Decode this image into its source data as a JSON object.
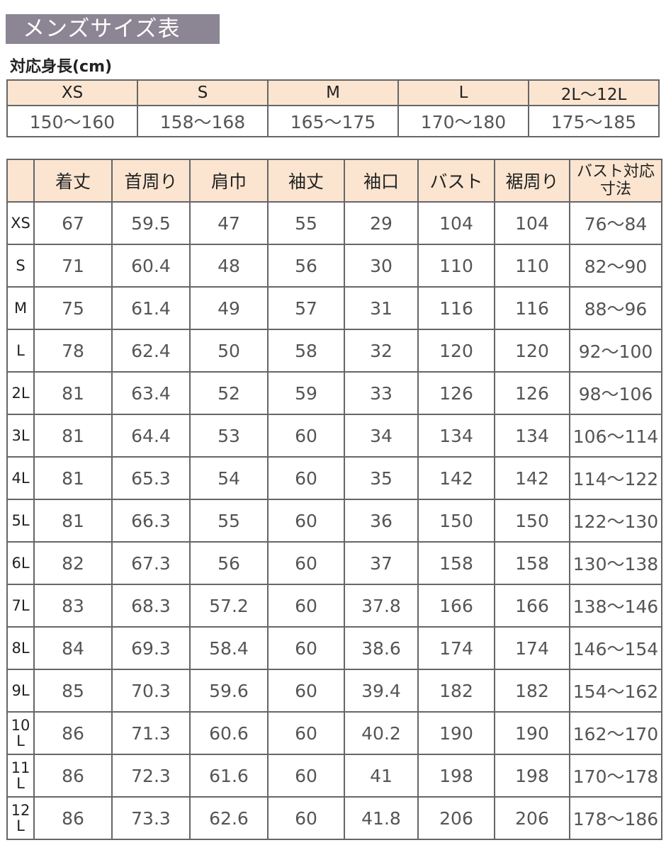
{
  "title": "メンズサイズ表",
  "height_table": {
    "label": "対応身長(cm)",
    "sizes": [
      "XS",
      "S",
      "M",
      "L",
      "2L〜12L"
    ],
    "heights": [
      "150〜160",
      "158〜168",
      "165〜175",
      "170〜180",
      "175〜185"
    ]
  },
  "size_table": {
    "headers": [
      "",
      "着丈",
      "首周り",
      "肩巾",
      "袖丈",
      "袖口",
      "バスト",
      "裾周り",
      "バスト対応寸法"
    ],
    "rows": [
      [
        "XS",
        "67",
        "59.5",
        "47",
        "55",
        "29",
        "104",
        "104",
        "76〜84"
      ],
      [
        "S",
        "71",
        "60.4",
        "48",
        "56",
        "30",
        "110",
        "110",
        "82〜90"
      ],
      [
        "M",
        "75",
        "61.4",
        "49",
        "57",
        "31",
        "116",
        "116",
        "88〜96"
      ],
      [
        "L",
        "78",
        "62.4",
        "50",
        "58",
        "32",
        "120",
        "120",
        "92〜100"
      ],
      [
        "2L",
        "81",
        "63.4",
        "52",
        "59",
        "33",
        "126",
        "126",
        "98〜106"
      ],
      [
        "3L",
        "81",
        "64.4",
        "53",
        "60",
        "34",
        "134",
        "134",
        "106〜114"
      ],
      [
        "4L",
        "81",
        "65.3",
        "54",
        "60",
        "35",
        "142",
        "142",
        "114〜122"
      ],
      [
        "5L",
        "81",
        "66.3",
        "55",
        "60",
        "36",
        "150",
        "150",
        "122〜130"
      ],
      [
        "6L",
        "82",
        "67.3",
        "56",
        "60",
        "37",
        "158",
        "158",
        "130〜138"
      ],
      [
        "7L",
        "83",
        "68.3",
        "57.2",
        "60",
        "37.8",
        "166",
        "166",
        "138〜146"
      ],
      [
        "8L",
        "84",
        "69.3",
        "58.4",
        "60",
        "38.6",
        "174",
        "174",
        "146〜154"
      ],
      [
        "9L",
        "85",
        "70.3",
        "59.6",
        "60",
        "39.4",
        "182",
        "182",
        "154〜162"
      ],
      [
        "10L",
        "86",
        "71.3",
        "60.6",
        "60",
        "40.2",
        "190",
        "190",
        "162〜170"
      ],
      [
        "11L",
        "86",
        "72.3",
        "61.6",
        "60",
        "41",
        "198",
        "198",
        "170〜178"
      ],
      [
        "12L",
        "86",
        "73.3",
        "62.6",
        "60",
        "41.8",
        "206",
        "206",
        "178〜186"
      ]
    ]
  },
  "colors": {
    "title_bg": "#8c8594",
    "header_bg": "#fbe5d0",
    "border": "#666666"
  }
}
